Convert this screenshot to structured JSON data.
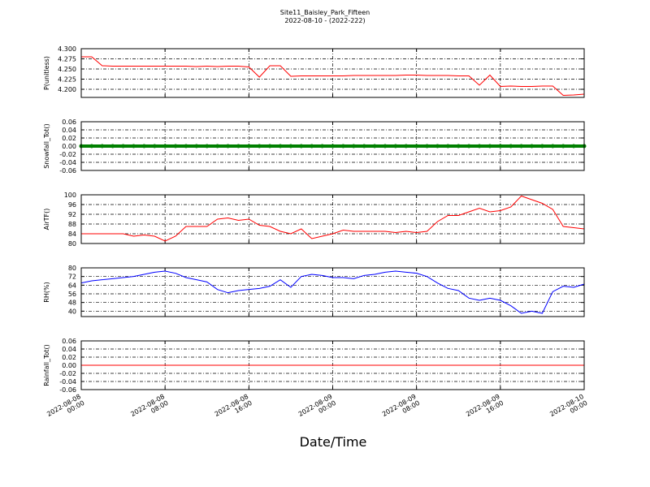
{
  "chart_data": [
    {
      "type": "line",
      "title": "Site11_Baisley_Park_Fifteen",
      "subtitle": "2022-08-10 - (2022-222)",
      "ylabel": "P(unitless)",
      "x": [
        "2022-08-08 00:00",
        "2022-08-08 01:00",
        "2022-08-08 02:00",
        "2022-08-08 03:00",
        "2022-08-08 04:00",
        "2022-08-08 05:00",
        "2022-08-08 06:00",
        "2022-08-08 07:00",
        "2022-08-08 08:00",
        "2022-08-08 09:00",
        "2022-08-08 10:00",
        "2022-08-08 11:00",
        "2022-08-08 12:00",
        "2022-08-08 13:00",
        "2022-08-08 14:00",
        "2022-08-08 15:00",
        "2022-08-08 16:00",
        "2022-08-08 17:00",
        "2022-08-08 18:00",
        "2022-08-08 19:00",
        "2022-08-08 20:00",
        "2022-08-08 21:00",
        "2022-08-08 22:00",
        "2022-08-08 23:00",
        "2022-08-09 00:00",
        "2022-08-09 01:00",
        "2022-08-09 02:00",
        "2022-08-09 03:00",
        "2022-08-09 04:00",
        "2022-08-09 05:00",
        "2022-08-09 06:00",
        "2022-08-09 07:00",
        "2022-08-09 08:00",
        "2022-08-09 09:00",
        "2022-08-09 10:00",
        "2022-08-09 11:00",
        "2022-08-09 12:00",
        "2022-08-09 13:00",
        "2022-08-09 14:00",
        "2022-08-09 15:00",
        "2022-08-09 16:00",
        "2022-08-09 17:00",
        "2022-08-09 18:00",
        "2022-08-09 19:00",
        "2022-08-09 20:00",
        "2022-08-09 21:00",
        "2022-08-09 22:00",
        "2022-08-09 23:00",
        "2022-08-10 00:00"
      ],
      "series": [
        {
          "color": "#ff0000",
          "values": [
            4.28,
            4.28,
            4.258,
            4.257,
            4.257,
            4.257,
            4.257,
            4.257,
            4.257,
            4.257,
            4.257,
            4.256,
            4.257,
            4.256,
            4.257,
            4.257,
            4.255,
            4.23,
            4.258,
            4.258,
            4.232,
            4.233,
            4.233,
            4.233,
            4.233,
            4.233,
            4.234,
            4.234,
            4.234,
            4.234,
            4.234,
            4.235,
            4.235,
            4.234,
            4.234,
            4.234,
            4.233,
            4.233,
            4.21,
            4.235,
            4.207,
            4.208,
            4.207,
            4.207,
            4.208,
            4.208,
            4.185,
            4.186,
            4.188
          ]
        }
      ],
      "xlim": [
        "2022-08-08 00:00",
        "2022-08-10 00:00"
      ],
      "xticks": [
        "2022-08-08 00:00",
        "2022-08-08 08:00",
        "2022-08-08 16:00",
        "2022-08-09 00:00",
        "2022-08-09 08:00",
        "2022-08-09 16:00",
        "2022-08-10 00:00"
      ],
      "ylim": [
        4.18,
        4.3
      ],
      "yticks": [
        {
          "value": 4.3,
          "label": "4.300"
        },
        4.275,
        {
          "value": 4.25,
          "label": "4.250"
        },
        4.225,
        {
          "value": 4.2,
          "label": "4.200"
        }
      ],
      "grid": true
    },
    {
      "type": "line",
      "ylabel": "Snowfall_Tot()",
      "marker": true,
      "x": [
        "2022-08-08 00:00",
        "2022-08-08 01:00",
        "2022-08-08 02:00",
        "2022-08-08 03:00",
        "2022-08-08 04:00",
        "2022-08-08 05:00",
        "2022-08-08 06:00",
        "2022-08-08 07:00",
        "2022-08-08 08:00",
        "2022-08-08 09:00",
        "2022-08-08 10:00",
        "2022-08-08 11:00",
        "2022-08-08 12:00",
        "2022-08-08 13:00",
        "2022-08-08 14:00",
        "2022-08-08 15:00",
        "2022-08-08 16:00",
        "2022-08-08 17:00",
        "2022-08-08 18:00",
        "2022-08-08 19:00",
        "2022-08-08 20:00",
        "2022-08-08 21:00",
        "2022-08-08 22:00",
        "2022-08-08 23:00",
        "2022-08-09 00:00",
        "2022-08-09 01:00",
        "2022-08-09 02:00",
        "2022-08-09 03:00",
        "2022-08-09 04:00",
        "2022-08-09 05:00",
        "2022-08-09 06:00",
        "2022-08-09 07:00",
        "2022-08-09 08:00",
        "2022-08-09 09:00",
        "2022-08-09 10:00",
        "2022-08-09 11:00",
        "2022-08-09 12:00",
        "2022-08-09 13:00",
        "2022-08-09 14:00",
        "2022-08-09 15:00",
        "2022-08-09 16:00",
        "2022-08-09 17:00",
        "2022-08-09 18:00",
        "2022-08-09 19:00",
        "2022-08-09 20:00",
        "2022-08-09 21:00",
        "2022-08-09 22:00",
        "2022-08-09 23:00",
        "2022-08-10 00:00"
      ],
      "series": [
        {
          "color": "#008000",
          "values": [
            0,
            0,
            0,
            0,
            0,
            0,
            0,
            0,
            0,
            0,
            0,
            0,
            0,
            0,
            0,
            0,
            0,
            0,
            0,
            0,
            0,
            0,
            0,
            0,
            0,
            0,
            0,
            0,
            0,
            0,
            0,
            0,
            0,
            0,
            0,
            0,
            0,
            0,
            0,
            0,
            0,
            0,
            0,
            0,
            0,
            0,
            0,
            0,
            0
          ]
        }
      ],
      "xlim": [
        "2022-08-08 00:00",
        "2022-08-10 00:00"
      ],
      "xticks": [
        "2022-08-08 00:00",
        "2022-08-08 08:00",
        "2022-08-08 16:00",
        "2022-08-09 00:00",
        "2022-08-09 08:00",
        "2022-08-09 16:00",
        "2022-08-10 00:00"
      ],
      "ylim": [
        -0.06,
        0.06
      ],
      "yticks": [
        0.06,
        0.04,
        0.02,
        {
          "value": 0,
          "label": "0.00"
        },
        -0.02,
        -0.04,
        -0.06
      ],
      "grid": true
    },
    {
      "type": "line",
      "ylabel": "AirTF()",
      "x": [
        "2022-08-08 00:00",
        "2022-08-08 01:00",
        "2022-08-08 02:00",
        "2022-08-08 03:00",
        "2022-08-08 04:00",
        "2022-08-08 05:00",
        "2022-08-08 06:00",
        "2022-08-08 07:00",
        "2022-08-08 08:00",
        "2022-08-08 09:00",
        "2022-08-08 10:00",
        "2022-08-08 11:00",
        "2022-08-08 12:00",
        "2022-08-08 13:00",
        "2022-08-08 14:00",
        "2022-08-08 15:00",
        "2022-08-08 16:00",
        "2022-08-08 17:00",
        "2022-08-08 18:00",
        "2022-08-08 19:00",
        "2022-08-08 20:00",
        "2022-08-08 21:00",
        "2022-08-08 22:00",
        "2022-08-08 23:00",
        "2022-08-09 00:00",
        "2022-08-09 01:00",
        "2022-08-09 02:00",
        "2022-08-09 03:00",
        "2022-08-09 04:00",
        "2022-08-09 05:00",
        "2022-08-09 06:00",
        "2022-08-09 07:00",
        "2022-08-09 08:00",
        "2022-08-09 09:00",
        "2022-08-09 10:00",
        "2022-08-09 11:00",
        "2022-08-09 12:00",
        "2022-08-09 13:00",
        "2022-08-09 14:00",
        "2022-08-09 15:00",
        "2022-08-09 16:00",
        "2022-08-09 17:00",
        "2022-08-09 18:00",
        "2022-08-09 19:00",
        "2022-08-09 20:00",
        "2022-08-09 21:00",
        "2022-08-09 22:00",
        "2022-08-09 23:00",
        "2022-08-10 00:00"
      ],
      "series": [
        {
          "color": "#ff0000",
          "values": [
            84,
            84,
            84,
            84,
            84,
            83,
            83.5,
            83,
            81,
            83,
            87,
            87,
            87,
            90,
            90.5,
            89.5,
            90,
            87.5,
            87,
            85,
            84,
            86,
            82,
            83,
            84,
            85.5,
            85,
            85,
            85,
            85,
            84.5,
            85,
            84.5,
            85,
            89,
            91.5,
            91.5,
            93,
            94.5,
            93,
            93.5,
            95,
            99.5,
            98,
            96.5,
            94,
            87,
            86.5,
            86
          ]
        }
      ],
      "xlim": [
        "2022-08-08 00:00",
        "2022-08-10 00:00"
      ],
      "xticks": [
        "2022-08-08 00:00",
        "2022-08-08 08:00",
        "2022-08-08 16:00",
        "2022-08-09 00:00",
        "2022-08-09 08:00",
        "2022-08-09 16:00",
        "2022-08-10 00:00"
      ],
      "ylim": [
        80,
        100
      ],
      "yticks": [
        100,
        96,
        92,
        88,
        84,
        80
      ],
      "grid": true
    },
    {
      "type": "line",
      "ylabel": "RH(%)",
      "x": [
        "2022-08-08 00:00",
        "2022-08-08 01:00",
        "2022-08-08 02:00",
        "2022-08-08 03:00",
        "2022-08-08 04:00",
        "2022-08-08 05:00",
        "2022-08-08 06:00",
        "2022-08-08 07:00",
        "2022-08-08 08:00",
        "2022-08-08 09:00",
        "2022-08-08 10:00",
        "2022-08-08 11:00",
        "2022-08-08 12:00",
        "2022-08-08 13:00",
        "2022-08-08 14:00",
        "2022-08-08 15:00",
        "2022-08-08 16:00",
        "2022-08-08 17:00",
        "2022-08-08 18:00",
        "2022-08-08 19:00",
        "2022-08-08 20:00",
        "2022-08-08 21:00",
        "2022-08-08 22:00",
        "2022-08-08 23:00",
        "2022-08-09 00:00",
        "2022-08-09 01:00",
        "2022-08-09 02:00",
        "2022-08-09 03:00",
        "2022-08-09 04:00",
        "2022-08-09 05:00",
        "2022-08-09 06:00",
        "2022-08-09 07:00",
        "2022-08-09 08:00",
        "2022-08-09 09:00",
        "2022-08-09 10:00",
        "2022-08-09 11:00",
        "2022-08-09 12:00",
        "2022-08-09 13:00",
        "2022-08-09 14:00",
        "2022-08-09 15:00",
        "2022-08-09 16:00",
        "2022-08-09 17:00",
        "2022-08-09 18:00",
        "2022-08-09 19:00",
        "2022-08-09 20:00",
        "2022-08-09 21:00",
        "2022-08-09 22:00",
        "2022-08-09 23:00",
        "2022-08-10 00:00"
      ],
      "series": [
        {
          "color": "#0000ff",
          "values": [
            66,
            68,
            69,
            70,
            71,
            72,
            74,
            76,
            77,
            75,
            71,
            69,
            67,
            60,
            57,
            59,
            60,
            61,
            63,
            69,
            62,
            72,
            74,
            73,
            71,
            71,
            70,
            73,
            74,
            76,
            77,
            76,
            75,
            72,
            66,
            61,
            59,
            52,
            50,
            52,
            50,
            45,
            38,
            40,
            38,
            58,
            63,
            62,
            65
          ]
        }
      ],
      "xlim": [
        "2022-08-08 00:00",
        "2022-08-10 00:00"
      ],
      "xticks": [
        "2022-08-08 00:00",
        "2022-08-08 08:00",
        "2022-08-08 16:00",
        "2022-08-09 00:00",
        "2022-08-09 08:00",
        "2022-08-09 16:00",
        "2022-08-10 00:00"
      ],
      "ylim": [
        35,
        80
      ],
      "yticks": [
        80,
        72,
        64,
        56,
        48,
        40
      ],
      "grid": true
    },
    {
      "type": "line",
      "ylabel": "Rainfall_Tot()",
      "xlabel": "Date/Time",
      "x": [
        "2022-08-08 00:00",
        "2022-08-08 01:00",
        "2022-08-08 02:00",
        "2022-08-08 03:00",
        "2022-08-08 04:00",
        "2022-08-08 05:00",
        "2022-08-08 06:00",
        "2022-08-08 07:00",
        "2022-08-08 08:00",
        "2022-08-08 09:00",
        "2022-08-08 10:00",
        "2022-08-08 11:00",
        "2022-08-08 12:00",
        "2022-08-08 13:00",
        "2022-08-08 14:00",
        "2022-08-08 15:00",
        "2022-08-08 16:00",
        "2022-08-08 17:00",
        "2022-08-08 18:00",
        "2022-08-08 19:00",
        "2022-08-08 20:00",
        "2022-08-08 21:00",
        "2022-08-08 22:00",
        "2022-08-08 23:00",
        "2022-08-09 00:00",
        "2022-08-09 01:00",
        "2022-08-09 02:00",
        "2022-08-09 03:00",
        "2022-08-09 04:00",
        "2022-08-09 05:00",
        "2022-08-09 06:00",
        "2022-08-09 07:00",
        "2022-08-09 08:00",
        "2022-08-09 09:00",
        "2022-08-09 10:00",
        "2022-08-09 11:00",
        "2022-08-09 12:00",
        "2022-08-09 13:00",
        "2022-08-09 14:00",
        "2022-08-09 15:00",
        "2022-08-09 16:00",
        "2022-08-09 17:00",
        "2022-08-09 18:00",
        "2022-08-09 19:00",
        "2022-08-09 20:00",
        "2022-08-09 21:00",
        "2022-08-09 22:00",
        "2022-08-09 23:00",
        "2022-08-10 00:00"
      ],
      "series": [
        {
          "color": "#ff0000",
          "values": [
            0,
            0,
            0,
            0,
            0,
            0,
            0,
            0,
            0,
            0,
            0,
            0,
            0,
            0,
            0,
            0,
            0,
            0,
            0,
            0,
            0,
            0,
            0,
            0,
            0,
            0,
            0,
            0,
            0,
            0,
            0,
            0,
            0,
            0,
            0,
            0,
            0,
            0,
            0,
            0,
            0,
            0,
            0,
            0,
            0,
            0,
            0,
            0,
            0
          ]
        }
      ],
      "xlim": [
        "2022-08-08 00:00",
        "2022-08-10 00:00"
      ],
      "xticks": [
        {
          "value": "2022-08-08 00:00",
          "label": "2022-08-08\n00:00"
        },
        {
          "value": "2022-08-08 08:00",
          "label": "2022-08-08\n08:00"
        },
        {
          "value": "2022-08-08 16:00",
          "label": "2022-08-08\n16:00"
        },
        {
          "value": "2022-08-09 00:00",
          "label": "2022-08-09\n00:00"
        },
        {
          "value": "2022-08-09 08:00",
          "label": "2022-08-09\n08:00"
        },
        {
          "value": "2022-08-09 16:00",
          "label": "2022-08-09\n16:00"
        },
        {
          "value": "2022-08-10 00:00",
          "label": "2022-08-10\n00:00"
        }
      ],
      "ylim": [
        -0.06,
        0.06
      ],
      "yticks": [
        0.06,
        0.04,
        0.02,
        {
          "value": 0,
          "label": "0.00"
        },
        -0.02,
        -0.04,
        -0.06
      ],
      "grid": true
    }
  ]
}
